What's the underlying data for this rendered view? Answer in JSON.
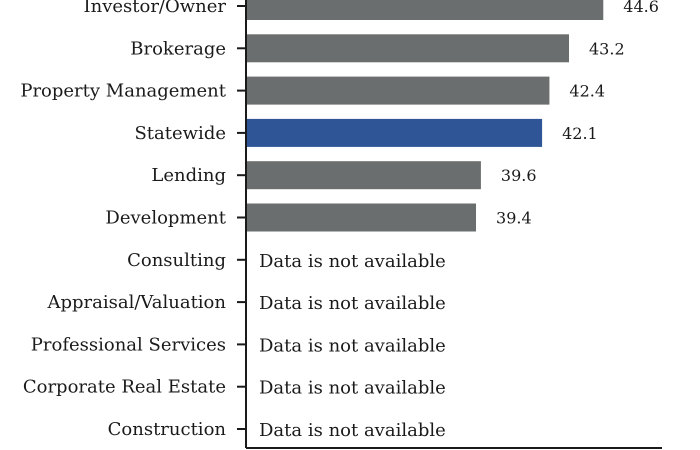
{
  "chart_data": {
    "type": "bar",
    "orientation": "horizontal",
    "categories": [
      "Investor/Owner",
      "Brokerage",
      "Property Management",
      "Statewide",
      "Lending",
      "Development",
      "Consulting",
      "Appraisal/Valuation",
      "Professional Services",
      "Corporate Real Estate",
      "Construction"
    ],
    "values": [
      44.6,
      43.2,
      42.4,
      42.1,
      39.6,
      39.4,
      null,
      null,
      null,
      null,
      null
    ],
    "value_labels": [
      "44.6",
      "43.2",
      "42.4",
      "42.1",
      "39.6",
      "39.4",
      "",
      "",
      "",
      "",
      ""
    ],
    "missing_label": "Data is not available",
    "highlight_category": "Statewide",
    "xlim": [
      30,
      47
    ],
    "title": "",
    "xlabel": "",
    "ylabel": "",
    "grid": false,
    "legend": "none",
    "colors": {
      "bar": "#6b6e6e",
      "highlight": "#2f5597",
      "axis": "#1a1a1a",
      "text": "#1a1a1a"
    }
  }
}
